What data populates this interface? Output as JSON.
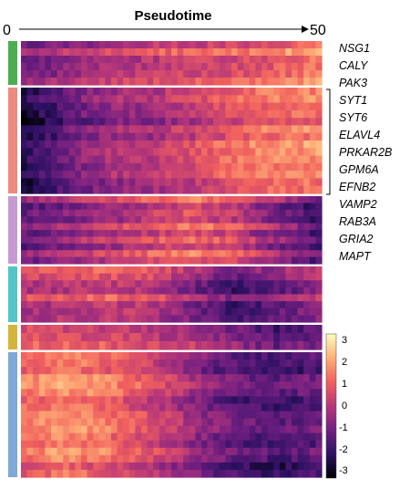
{
  "chart_data": {
    "type": "heatmap",
    "title": "",
    "xlabel": "Pseudotime",
    "x_tick_labels": [
      "0",
      "50"
    ],
    "xlim": [
      0,
      50
    ],
    "colorbar": {
      "range": [
        -3,
        3
      ],
      "ticks": [
        "3",
        "2",
        "1",
        "0",
        "-1",
        "-2",
        "-3"
      ],
      "colors": [
        "#000004",
        "#2d1164",
        "#721f81",
        "#b73779",
        "#f1605d",
        "#feb078",
        "#fcfdbf"
      ]
    },
    "clusters": [
      {
        "color": "#4cae4f",
        "rows": 6,
        "trend": [
          -0.6,
          -0.2,
          0.3,
          0.6,
          0.8,
          1.0,
          1.3,
          1.8
        ]
      },
      {
        "color": "#ec8a80",
        "rows": 14,
        "trend": [
          -2.3,
          -1.2,
          -0.4,
          -0.2,
          0.3,
          0.9,
          1.3,
          1.4
        ]
      },
      {
        "color": "#c79ad2",
        "rows": 10,
        "trend": [
          -0.9,
          -0.5,
          0.0,
          0.5,
          1.0,
          0.5,
          -0.6,
          -1.4
        ]
      },
      {
        "color": "#55c4c8",
        "rows": 8,
        "trend": [
          0.2,
          0.3,
          0.5,
          0.4,
          -0.6,
          -1.4,
          -0.9,
          -0.3
        ]
      },
      {
        "color": "#d2b53a",
        "rows": 3,
        "trend": [
          0.6,
          0.5,
          0.4,
          0.0,
          -0.3,
          -0.9,
          -1.6,
          -1.2
        ]
      },
      {
        "color": "#7fa7d8",
        "rows": 17,
        "trend": [
          1.1,
          1.5,
          1.1,
          0.4,
          -0.5,
          -1.3,
          -1.6,
          -1.3
        ]
      }
    ],
    "genes": [
      "NSG1",
      "CALY",
      "PAK3",
      "SYT1",
      "SYT6",
      "ELAVL4",
      "PRKAR2B",
      "GPM6A",
      "EFNB2",
      "VAMP2",
      "RAB3A",
      "GRIA2",
      "MAPT"
    ]
  }
}
